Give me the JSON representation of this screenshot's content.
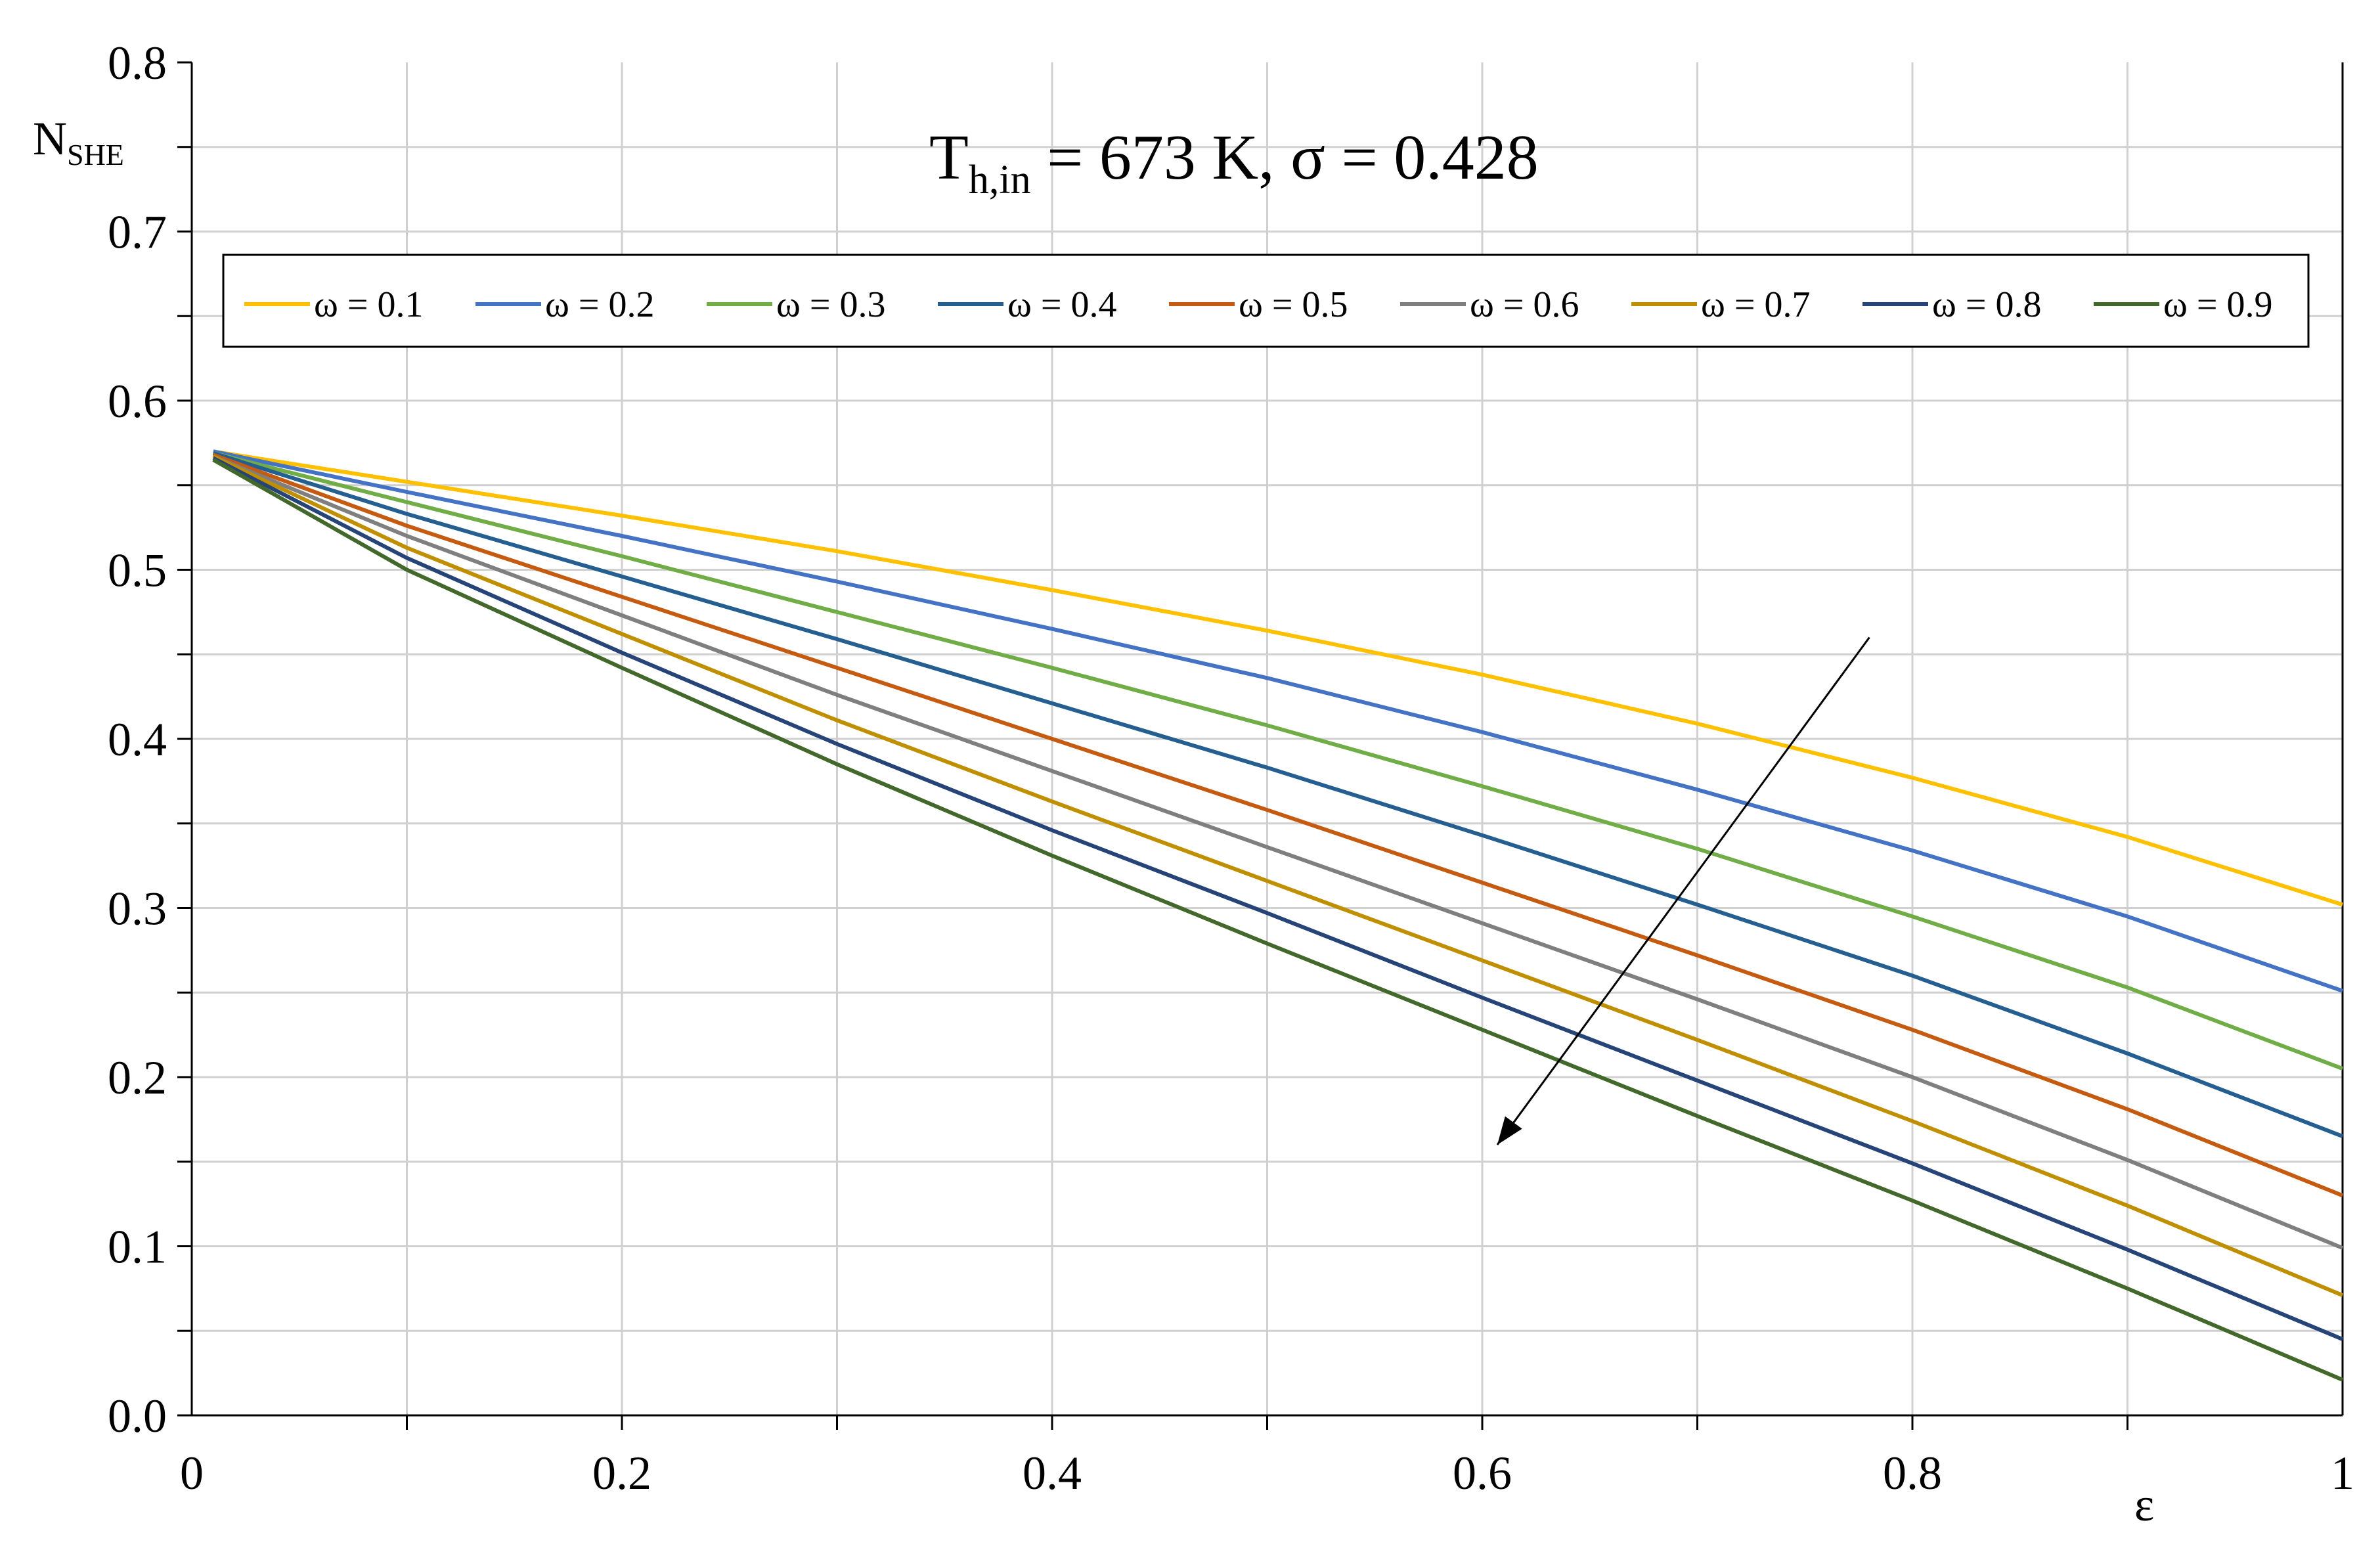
{
  "chart_data": {
    "type": "line",
    "annotation": {
      "main": "T",
      "subscript": "h,in",
      "rest": " = 673 K, σ = 0.428"
    },
    "xlabel": "ε",
    "ylabel": {
      "main": "N",
      "subscript": "SHE"
    },
    "xlim": [
      0,
      1
    ],
    "ylim": [
      0,
      0.8
    ],
    "x_ticks": [
      0,
      0.2,
      0.4,
      0.6,
      0.8,
      1
    ],
    "x_tick_labels": [
      "0",
      "0.2",
      "0.4",
      "0.6",
      "0.8",
      "1"
    ],
    "y_ticks": [
      0,
      0.1,
      0.2,
      0.3,
      0.4,
      0.5,
      0.6,
      0.7,
      0.8
    ],
    "y_tick_labels": [
      "0.0",
      "0.1",
      "0.2",
      "0.3",
      "0.4",
      "0.5",
      "0.6",
      "0.7",
      "0.8"
    ],
    "grid": true,
    "legend_position": "top",
    "arrow": {
      "from": [
        0.78,
        0.46
      ],
      "to": [
        0.607,
        0.16
      ],
      "meaning": "increasing ω"
    },
    "series": [
      {
        "name": "ω = 0.1",
        "color": "#FFC000",
        "x": [
          0.01,
          0.1,
          0.2,
          0.3,
          0.4,
          0.5,
          0.6,
          0.7,
          0.8,
          0.9,
          1.0
        ],
        "y": [
          0.57,
          0.552,
          0.532,
          0.511,
          0.488,
          0.464,
          0.438,
          0.409,
          0.377,
          0.342,
          0.302
        ]
      },
      {
        "name": "ω = 0.2",
        "color": "#4472C4",
        "x": [
          0.01,
          0.1,
          0.2,
          0.3,
          0.4,
          0.5,
          0.6,
          0.7,
          0.8,
          0.9,
          1.0
        ],
        "y": [
          0.57,
          0.546,
          0.52,
          0.493,
          0.465,
          0.436,
          0.404,
          0.37,
          0.334,
          0.295,
          0.251
        ]
      },
      {
        "name": "ω = 0.3",
        "color": "#70AD47",
        "x": [
          0.01,
          0.1,
          0.2,
          0.3,
          0.4,
          0.5,
          0.6,
          0.7,
          0.8,
          0.9,
          1.0
        ],
        "y": [
          0.569,
          0.54,
          0.508,
          0.475,
          0.442,
          0.408,
          0.372,
          0.335,
          0.295,
          0.253,
          0.205
        ]
      },
      {
        "name": "ω = 0.4",
        "color": "#255E91",
        "x": [
          0.01,
          0.1,
          0.2,
          0.3,
          0.4,
          0.5,
          0.6,
          0.7,
          0.8,
          0.9,
          1.0
        ],
        "y": [
          0.569,
          0.533,
          0.496,
          0.459,
          0.421,
          0.383,
          0.343,
          0.302,
          0.26,
          0.214,
          0.165
        ]
      },
      {
        "name": "ω = 0.5",
        "color": "#C55A11",
        "x": [
          0.01,
          0.1,
          0.2,
          0.3,
          0.4,
          0.5,
          0.6,
          0.7,
          0.8,
          0.9,
          1.0
        ],
        "y": [
          0.568,
          0.526,
          0.484,
          0.442,
          0.4,
          0.358,
          0.315,
          0.272,
          0.228,
          0.181,
          0.13
        ]
      },
      {
        "name": "ω = 0.6",
        "color": "#7F7F7F",
        "x": [
          0.01,
          0.1,
          0.2,
          0.3,
          0.4,
          0.5,
          0.6,
          0.7,
          0.8,
          0.9,
          1.0
        ],
        "y": [
          0.567,
          0.52,
          0.473,
          0.426,
          0.381,
          0.336,
          0.291,
          0.246,
          0.2,
          0.151,
          0.099
        ]
      },
      {
        "name": "ω = 0.7",
        "color": "#BF8F00",
        "x": [
          0.01,
          0.1,
          0.2,
          0.3,
          0.4,
          0.5,
          0.6,
          0.7,
          0.8,
          0.9,
          1.0
        ],
        "y": [
          0.567,
          0.513,
          0.462,
          0.411,
          0.363,
          0.316,
          0.269,
          0.222,
          0.174,
          0.124,
          0.071
        ]
      },
      {
        "name": "ω = 0.8",
        "color": "#264478",
        "x": [
          0.01,
          0.1,
          0.2,
          0.3,
          0.4,
          0.5,
          0.6,
          0.7,
          0.8,
          0.9,
          1.0
        ],
        "y": [
          0.566,
          0.507,
          0.451,
          0.397,
          0.346,
          0.297,
          0.247,
          0.198,
          0.149,
          0.098,
          0.045
        ]
      },
      {
        "name": "ω = 0.9",
        "color": "#43682B",
        "x": [
          0.01,
          0.1,
          0.2,
          0.3,
          0.4,
          0.5,
          0.6,
          0.7,
          0.8,
          0.9,
          1.0
        ],
        "y": [
          0.565,
          0.5,
          0.442,
          0.385,
          0.331,
          0.279,
          0.228,
          0.177,
          0.127,
          0.075,
          0.021
        ]
      }
    ]
  }
}
